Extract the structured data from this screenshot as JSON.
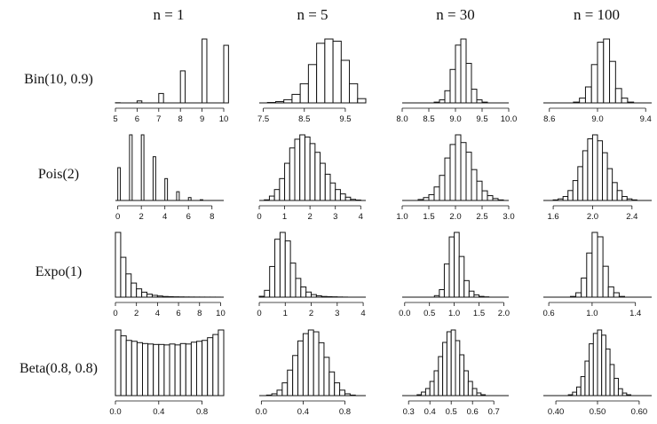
{
  "column_headers": [
    "n = 1",
    "n = 5",
    "n = 30",
    "n = 100"
  ],
  "row_labels": [
    "Bin(10, 0.9)",
    "Pois(2)",
    "Expo(1)",
    "Beta(0.8, 0.8)"
  ],
  "chart_data": [
    {
      "type": "bar",
      "row": 0,
      "col": 0,
      "title": "",
      "xlim": [
        5,
        10
      ],
      "xticks": [
        5,
        6,
        7,
        8,
        9,
        10
      ],
      "tick_labels": [
        "5",
        "6",
        "7",
        "8",
        "9",
        "10"
      ],
      "bar_width": 0.22,
      "bins": [
        5,
        6,
        7,
        8,
        9,
        10
      ],
      "values": [
        0.1,
        1.2,
        5.7,
        19.4,
        38.7,
        34.9
      ]
    },
    {
      "type": "bar",
      "row": 0,
      "col": 1,
      "title": "",
      "xlim": [
        7.4,
        10
      ],
      "xticks": [
        7.5,
        8.5,
        9.5
      ],
      "tick_labels": [
        "7.5",
        "8.5",
        "9.5"
      ],
      "bar_width": 0.2,
      "bins": [
        7.6,
        7.8,
        8.0,
        8.2,
        8.4,
        8.6,
        8.8,
        9.0,
        9.2,
        9.4,
        9.6,
        9.8
      ],
      "values": [
        0.2,
        0.6,
        1.5,
        4,
        9,
        18,
        28,
        30,
        29,
        20,
        9,
        2
      ]
    },
    {
      "type": "bar",
      "row": 0,
      "col": 2,
      "title": "",
      "xlim": [
        8.0,
        10.0
      ],
      "xticks": [
        8.0,
        8.5,
        9.0,
        9.5,
        10.0
      ],
      "tick_labels": [
        "8.0",
        "8.5",
        "9.0",
        "9.5",
        "10.0"
      ],
      "bar_width": 0.1,
      "bins": [
        8.6,
        8.7,
        8.8,
        8.9,
        9.0,
        9.1,
        9.2,
        9.3,
        9.4,
        9.5
      ],
      "values": [
        0.5,
        2,
        8,
        22,
        38,
        42,
        26,
        9,
        2,
        0.5
      ]
    },
    {
      "type": "bar",
      "row": 0,
      "col": 3,
      "title": "",
      "xlim": [
        8.55,
        9.45
      ],
      "xticks": [
        8.6,
        9.0,
        9.4
      ],
      "tick_labels": [
        "8.6",
        "9.0",
        "9.4"
      ],
      "bar_width": 0.05,
      "bins": [
        8.8,
        8.85,
        8.9,
        8.95,
        9.0,
        9.05,
        9.1,
        9.15,
        9.2,
        9.25
      ],
      "values": [
        0.5,
        3,
        10,
        24,
        38,
        40,
        26,
        9,
        3,
        0.5
      ]
    },
    {
      "type": "bar",
      "row": 1,
      "col": 0,
      "title": "",
      "xlim": [
        -0.2,
        9
      ],
      "xticks": [
        0,
        2,
        4,
        6,
        8
      ],
      "tick_labels": [
        "0",
        "2",
        "4",
        "6",
        "8"
      ],
      "bar_width": 0.22,
      "bins": [
        0,
        1,
        2,
        3,
        4,
        5,
        6,
        7
      ],
      "values": [
        13.5,
        27,
        27,
        18,
        9,
        3.6,
        1.2,
        0.3
      ]
    },
    {
      "type": "bar",
      "row": 1,
      "col": 1,
      "title": "",
      "xlim": [
        0,
        4.2
      ],
      "xticks": [
        0,
        1,
        2,
        3,
        4
      ],
      "tick_labels": [
        "0",
        "1",
        "2",
        "3",
        "4"
      ],
      "bar_width": 0.2,
      "bins": [
        0.2,
        0.4,
        0.6,
        0.8,
        1.0,
        1.2,
        1.4,
        1.6,
        1.8,
        2.0,
        2.2,
        2.4,
        2.6,
        2.8,
        3.0,
        3.2,
        3.4,
        3.6,
        3.8
      ],
      "values": [
        0.3,
        2,
        5,
        10,
        17,
        24,
        28,
        30,
        29,
        26,
        22,
        17,
        12,
        8,
        5,
        3,
        1.5,
        0.5,
        0.2
      ]
    },
    {
      "type": "bar",
      "row": 1,
      "col": 2,
      "title": "",
      "xlim": [
        1.0,
        3.0
      ],
      "xticks": [
        1.0,
        1.5,
        2.0,
        2.5,
        3.0
      ],
      "tick_labels": [
        "1.0",
        "1.5",
        "2.0",
        "2.5",
        "3.0"
      ],
      "bar_width": 0.1,
      "bins": [
        1.3,
        1.4,
        1.5,
        1.6,
        1.7,
        1.8,
        1.9,
        2.0,
        2.1,
        2.2,
        2.3,
        2.4,
        2.5,
        2.6,
        2.7,
        2.8
      ],
      "values": [
        0.5,
        1.5,
        3,
        7,
        13,
        22,
        29,
        34,
        30,
        25,
        16,
        10,
        5,
        2.5,
        1,
        0.3
      ]
    },
    {
      "type": "bar",
      "row": 1,
      "col": 3,
      "title": "",
      "xlim": [
        1.5,
        2.6
      ],
      "xticks": [
        1.6,
        2.0,
        2.4
      ],
      "tick_labels": [
        "1.6",
        "2.0",
        "2.4"
      ],
      "bar_width": 0.05,
      "bins": [
        1.6,
        1.65,
        1.7,
        1.75,
        1.8,
        1.85,
        1.9,
        1.95,
        2.0,
        2.05,
        2.1,
        2.15,
        2.2,
        2.25,
        2.3,
        2.35,
        2.4
      ],
      "values": [
        0.3,
        0.8,
        2,
        5,
        10,
        17,
        25,
        31,
        33,
        30,
        24,
        16,
        9,
        5,
        2,
        0.8,
        0.3
      ]
    },
    {
      "type": "bar",
      "row": 2,
      "col": 0,
      "title": "",
      "xlim": [
        0,
        10.3
      ],
      "xticks": [
        0,
        2,
        4,
        6,
        8,
        10
      ],
      "tick_labels": [
        "0",
        "2",
        "4",
        "6",
        "8",
        "10"
      ],
      "bar_width": 0.5,
      "bins": [
        0,
        0.5,
        1,
        1.5,
        2,
        2.5,
        3,
        3.5,
        4,
        4.5,
        5,
        5.5,
        6,
        6.5,
        7,
        7.5,
        8,
        8.5,
        9,
        9.5
      ],
      "values": [
        39,
        24,
        14,
        8.5,
        5,
        3,
        1.8,
        1.1,
        0.7,
        0.4,
        0.3,
        0.2,
        0.15,
        0.1,
        0.08,
        0.06,
        0.05,
        0.04,
        0.03,
        0.02
      ]
    },
    {
      "type": "bar",
      "row": 2,
      "col": 1,
      "title": "",
      "xlim": [
        0,
        4.1
      ],
      "xticks": [
        0,
        1,
        2,
        3,
        4
      ],
      "tick_labels": [
        "0",
        "1",
        "2",
        "3",
        "4"
      ],
      "bar_width": 0.2,
      "bins": [
        0,
        0.2,
        0.4,
        0.6,
        0.8,
        1.0,
        1.2,
        1.4,
        1.6,
        1.8,
        2.0,
        2.2,
        2.4,
        2.6,
        2.8,
        3.0,
        3.2
      ],
      "values": [
        0.5,
        4,
        18,
        34,
        38,
        33,
        20,
        11,
        6,
        3,
        1.5,
        0.8,
        0.4,
        0.3,
        0.2,
        0.1,
        0.05
      ]
    },
    {
      "type": "bar",
      "row": 2,
      "col": 2,
      "title": "",
      "xlim": [
        -0.05,
        2.1
      ],
      "xticks": [
        0.0,
        0.5,
        1.0,
        1.5,
        2.0
      ],
      "tick_labels": [
        "0.0",
        "0.5",
        "1.0",
        "1.5",
        "2.0"
      ],
      "bar_width": 0.1,
      "bins": [
        0.6,
        0.7,
        0.8,
        0.9,
        1.0,
        1.1,
        1.2,
        1.3,
        1.4,
        1.5,
        1.6
      ],
      "values": [
        1,
        5,
        22,
        40,
        43,
        27,
        11,
        4,
        1.5,
        0.5,
        0.2
      ]
    },
    {
      "type": "bar",
      "row": 2,
      "col": 3,
      "title": "",
      "xlim": [
        0.55,
        1.55
      ],
      "xticks": [
        0.6,
        1.0,
        1.4
      ],
      "tick_labels": [
        "0.6",
        "1.0",
        "1.4"
      ],
      "bar_width": 0.05,
      "bins": [
        0.8,
        0.85,
        0.9,
        0.95,
        1.0,
        1.05,
        1.1,
        1.15,
        1.2,
        1.25
      ],
      "values": [
        0.5,
        3,
        13,
        30,
        44,
        41,
        21,
        7,
        3,
        0.5
      ]
    },
    {
      "type": "bar",
      "row": 3,
      "col": 0,
      "title": "",
      "xlim": [
        0,
        1.0
      ],
      "xticks": [
        0.0,
        0.4,
        0.8
      ],
      "tick_labels": [
        "0.0",
        "0.4",
        "0.8"
      ],
      "bar_width": 0.05,
      "bins": [
        0,
        0.05,
        0.1,
        0.15,
        0.2,
        0.25,
        0.3,
        0.35,
        0.4,
        0.45,
        0.5,
        0.55,
        0.6,
        0.65,
        0.7,
        0.75,
        0.8,
        0.85,
        0.9,
        0.95
      ],
      "values": [
        1.45,
        1.32,
        1.22,
        1.2,
        1.17,
        1.15,
        1.14,
        1.13,
        1.13,
        1.12,
        1.14,
        1.12,
        1.15,
        1.14,
        1.18,
        1.2,
        1.22,
        1.28,
        1.35,
        1.45
      ]
    },
    {
      "type": "bar",
      "row": 3,
      "col": 1,
      "title": "",
      "xlim": [
        -0.02,
        1.0
      ],
      "xticks": [
        0.0,
        0.4,
        0.8
      ],
      "tick_labels": [
        "0.0",
        "0.4",
        "0.8"
      ],
      "bar_width": 0.05,
      "bins": [
        0.05,
        0.1,
        0.15,
        0.2,
        0.25,
        0.3,
        0.35,
        0.4,
        0.45,
        0.5,
        0.55,
        0.6,
        0.65,
        0.7,
        0.75,
        0.8,
        0.85
      ],
      "values": [
        0.3,
        1,
        3,
        7,
        14,
        22,
        30,
        34,
        36,
        35,
        29,
        21,
        13,
        7,
        3,
        1,
        0.3
      ]
    },
    {
      "type": "bar",
      "row": 3,
      "col": 2,
      "title": "",
      "xlim": [
        0.27,
        0.77
      ],
      "xticks": [
        0.3,
        0.4,
        0.5,
        0.6,
        0.7
      ],
      "tick_labels": [
        "0.3",
        "0.4",
        "0.5",
        "0.6",
        "0.7"
      ],
      "bar_width": 0.02,
      "bins": [
        0.34,
        0.36,
        0.38,
        0.4,
        0.42,
        0.44,
        0.46,
        0.48,
        0.5,
        0.52,
        0.54,
        0.56,
        0.58,
        0.6,
        0.62,
        0.64
      ],
      "values": [
        0.5,
        2,
        4,
        8,
        14,
        22,
        30,
        36,
        37,
        31,
        23,
        14,
        8,
        4,
        1.5,
        0.5
      ]
    },
    {
      "type": "bar",
      "row": 3,
      "col": 3,
      "title": "",
      "xlim": [
        0.37,
        0.63
      ],
      "xticks": [
        0.4,
        0.5,
        0.6
      ],
      "tick_labels": [
        "0.40",
        "0.50",
        "0.60"
      ],
      "bar_width": 0.01,
      "bins": [
        0.43,
        0.44,
        0.45,
        0.46,
        0.47,
        0.48,
        0.49,
        0.5,
        0.51,
        0.52,
        0.53,
        0.54,
        0.55,
        0.56,
        0.57
      ],
      "values": [
        0.5,
        2,
        5,
        11,
        20,
        30,
        36,
        38,
        35,
        27,
        18,
        10,
        4,
        1.5,
        0.5
      ]
    }
  ]
}
